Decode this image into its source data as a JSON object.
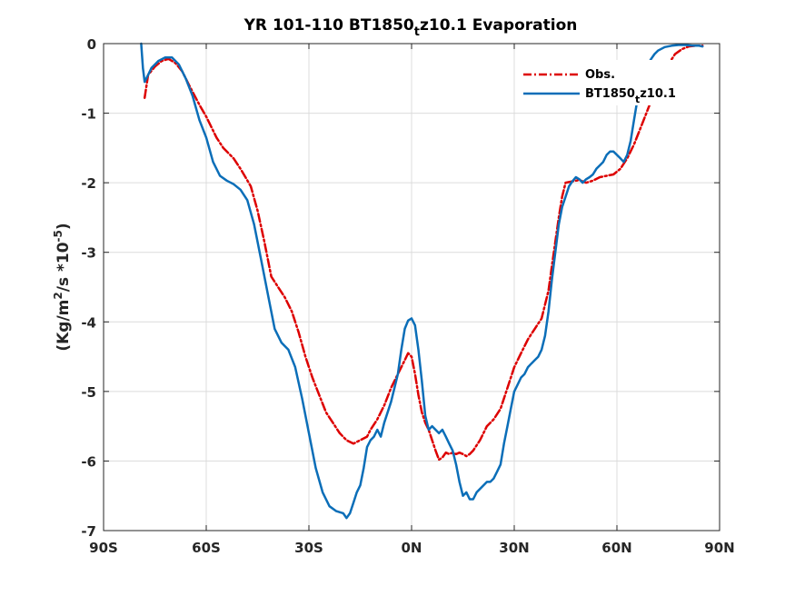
{
  "chart_data": {
    "type": "line",
    "title_main": "YR 101-110 BT1850",
    "title_sub": "t",
    "title_tail": "z10.1 Evaporation",
    "ylabel_a": "(Kg/m",
    "ylabel_sup1": "2",
    "ylabel_b": "/s *10",
    "ylabel_sup2": "-5",
    "ylabel_c": ")",
    "xlim": [
      -90,
      90
    ],
    "ylim": [
      -7,
      0
    ],
    "x_ticks": [
      -90,
      -60,
      -30,
      0,
      30,
      60,
      90
    ],
    "x_tick_labels": [
      "90S",
      "60S",
      "30S",
      "0N",
      "30N",
      "60N",
      "90N"
    ],
    "y_ticks": [
      0,
      -1,
      -2,
      -3,
      -4,
      -5,
      -6,
      -7
    ],
    "y_tick_labels": [
      "0",
      "-1",
      "-2",
      "-3",
      "-4",
      "-5",
      "-6",
      "-7"
    ],
    "grid": true,
    "legend_position": "top-right",
    "series": [
      {
        "name": "Obs.",
        "color": "#dd0000",
        "style": "dashdot",
        "x": [
          -78,
          -77,
          -75,
          -73,
          -71,
          -69,
          -67,
          -65,
          -62,
          -60,
          -57,
          -55,
          -52,
          -50,
          -47,
          -45,
          -43,
          -41,
          -39,
          -37,
          -35,
          -33,
          -31,
          -29,
          -27,
          -25,
          -23,
          -21,
          -19,
          -17,
          -15,
          -13,
          -12,
          -10,
          -8,
          -6,
          -4,
          -2,
          -1,
          0,
          1,
          2,
          3,
          4,
          5,
          6,
          7,
          8,
          9,
          10,
          11,
          12,
          13,
          14,
          15,
          16,
          17,
          18,
          20,
          22,
          24,
          26,
          28,
          30,
          32,
          34,
          36,
          38,
          40,
          41,
          42,
          43,
          44,
          45,
          47,
          49,
          51,
          53,
          55,
          57,
          59,
          61,
          63,
          65,
          67,
          69,
          71,
          73,
          75,
          77,
          79,
          81,
          83,
          85
        ],
        "y": [
          -0.78,
          -0.45,
          -0.33,
          -0.25,
          -0.22,
          -0.28,
          -0.4,
          -0.6,
          -0.88,
          -1.05,
          -1.35,
          -1.5,
          -1.65,
          -1.8,
          -2.05,
          -2.4,
          -2.85,
          -3.35,
          -3.5,
          -3.65,
          -3.85,
          -4.15,
          -4.5,
          -4.8,
          -5.05,
          -5.3,
          -5.45,
          -5.6,
          -5.7,
          -5.75,
          -5.7,
          -5.65,
          -5.55,
          -5.4,
          -5.2,
          -4.95,
          -4.75,
          -4.55,
          -4.45,
          -4.5,
          -4.75,
          -5.05,
          -5.3,
          -5.45,
          -5.55,
          -5.7,
          -5.85,
          -5.98,
          -5.95,
          -5.88,
          -5.9,
          -5.88,
          -5.9,
          -5.88,
          -5.9,
          -5.93,
          -5.9,
          -5.85,
          -5.7,
          -5.5,
          -5.4,
          -5.25,
          -4.95,
          -4.65,
          -4.45,
          -4.25,
          -4.1,
          -3.95,
          -3.55,
          -3.2,
          -2.85,
          -2.5,
          -2.2,
          -2.0,
          -1.98,
          -1.96,
          -2.0,
          -1.97,
          -1.92,
          -1.9,
          -1.88,
          -1.8,
          -1.65,
          -1.45,
          -1.2,
          -0.95,
          -0.7,
          -0.48,
          -0.3,
          -0.15,
          -0.08,
          -0.04,
          -0.03,
          -0.03
        ]
      },
      {
        "name": "BT1850",
        "name_sub": "t",
        "name_tail": "z10.1",
        "color": "#0b6eb8",
        "style": "solid",
        "x": [
          -79,
          -78.5,
          -78,
          -77,
          -76,
          -75,
          -74,
          -72,
          -70,
          -68,
          -66,
          -64,
          -62,
          -60,
          -58,
          -56,
          -54,
          -52,
          -50,
          -48,
          -46,
          -44,
          -42,
          -40,
          -38,
          -36,
          -34,
          -32,
          -30,
          -28,
          -26,
          -24,
          -22,
          -20,
          -19,
          -18,
          -17,
          -16,
          -15,
          -14,
          -13,
          -12,
          -11,
          -10,
          -9,
          -8,
          -6,
          -4,
          -3,
          -2,
          -1,
          0,
          1,
          2,
          3,
          4,
          5,
          6,
          7,
          8,
          9,
          10,
          11,
          12,
          13,
          14,
          15,
          16,
          17,
          18,
          19,
          20,
          21,
          22,
          23,
          24,
          25,
          26,
          27,
          28,
          29,
          30,
          31,
          32,
          33,
          34,
          35,
          36,
          37,
          38,
          39,
          40,
          41,
          42,
          43,
          44,
          45,
          46,
          47,
          48,
          49,
          50,
          51,
          52,
          53,
          54,
          55,
          56,
          57,
          58,
          59,
          60,
          61,
          62,
          63,
          64,
          65,
          66,
          67,
          68,
          69,
          70,
          71,
          72,
          74,
          76,
          78,
          80,
          82,
          84,
          85
        ],
        "y": [
          0.0,
          -0.35,
          -0.55,
          -0.45,
          -0.35,
          -0.3,
          -0.25,
          -0.2,
          -0.2,
          -0.3,
          -0.5,
          -0.75,
          -1.1,
          -1.35,
          -1.7,
          -1.9,
          -1.97,
          -2.02,
          -2.1,
          -2.25,
          -2.6,
          -3.1,
          -3.6,
          -4.1,
          -4.3,
          -4.4,
          -4.65,
          -5.1,
          -5.6,
          -6.1,
          -6.45,
          -6.65,
          -6.72,
          -6.75,
          -6.82,
          -6.75,
          -6.6,
          -6.45,
          -6.35,
          -6.1,
          -5.8,
          -5.7,
          -5.65,
          -5.55,
          -5.65,
          -5.45,
          -5.15,
          -4.75,
          -4.4,
          -4.1,
          -3.98,
          -3.95,
          -4.05,
          -4.4,
          -4.85,
          -5.35,
          -5.55,
          -5.5,
          -5.55,
          -5.6,
          -5.55,
          -5.65,
          -5.75,
          -5.85,
          -6.05,
          -6.3,
          -6.5,
          -6.45,
          -6.55,
          -6.55,
          -6.45,
          -6.4,
          -6.35,
          -6.3,
          -6.3,
          -6.25,
          -6.15,
          -6.05,
          -5.75,
          -5.5,
          -5.25,
          -5.0,
          -4.9,
          -4.8,
          -4.75,
          -4.65,
          -4.6,
          -4.55,
          -4.5,
          -4.4,
          -4.2,
          -3.85,
          -3.4,
          -3.0,
          -2.6,
          -2.35,
          -2.2,
          -2.05,
          -1.98,
          -1.92,
          -1.95,
          -2.0,
          -1.95,
          -1.92,
          -1.88,
          -1.8,
          -1.75,
          -1.7,
          -1.6,
          -1.55,
          -1.55,
          -1.6,
          -1.65,
          -1.7,
          -1.6,
          -1.4,
          -1.1,
          -0.8,
          -0.55,
          -0.4,
          -0.3,
          -0.22,
          -0.15,
          -0.1,
          -0.05,
          -0.03,
          -0.02,
          -0.02,
          -0.03,
          -0.03,
          -0.04
        ]
      }
    ]
  }
}
